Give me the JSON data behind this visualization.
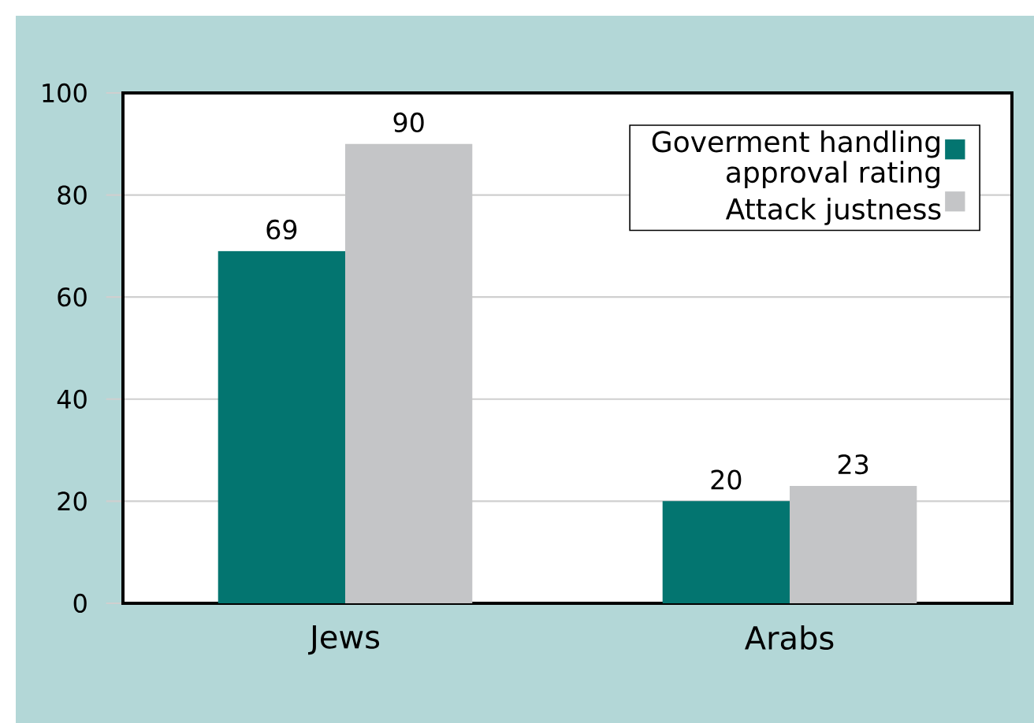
{
  "chart_data": {
    "type": "bar",
    "categories": [
      "Jews",
      "Arabs"
    ],
    "series": [
      {
        "name": "Goverment handling approval rating",
        "color": "#037570",
        "values": [
          69,
          20
        ]
      },
      {
        "name": "Attack justness",
        "color": "#c4c5c7",
        "values": [
          90,
          23
        ]
      }
    ],
    "ylim": [
      0,
      100
    ],
    "yticks": [
      0,
      20,
      40,
      60,
      80,
      100
    ],
    "grid": "y",
    "legend": "top right",
    "data_labels": true
  }
}
